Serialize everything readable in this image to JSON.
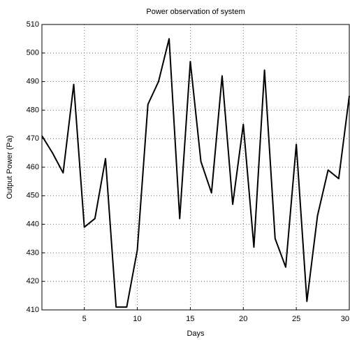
{
  "chart_data": {
    "type": "line",
    "title": "Power observation of system",
    "xlabel": "Days",
    "ylabel": "Output Power (Pa)",
    "x": [
      1,
      2,
      3,
      4,
      5,
      6,
      7,
      8,
      9,
      10,
      11,
      12,
      13,
      14,
      15,
      16,
      17,
      18,
      19,
      20,
      21,
      22,
      23,
      24,
      25,
      26,
      27,
      28,
      29,
      30
    ],
    "series": [
      {
        "name": "Output Power",
        "color": "#000000",
        "values": [
          471,
          465,
          458,
          489,
          439,
          442,
          463,
          411,
          411,
          431,
          482,
          490,
          505,
          442,
          497,
          462,
          451,
          492,
          447,
          475,
          432,
          494,
          435,
          425,
          468,
          413,
          443,
          459,
          456,
          485
        ]
      }
    ],
    "xlim": [
      1,
      30
    ],
    "xticks": [
      5,
      10,
      15,
      20,
      25,
      30
    ],
    "ylim": [
      410,
      510
    ],
    "yticks": [
      410,
      420,
      430,
      440,
      450,
      460,
      470,
      480,
      490,
      500,
      510
    ],
    "grid": true
  }
}
